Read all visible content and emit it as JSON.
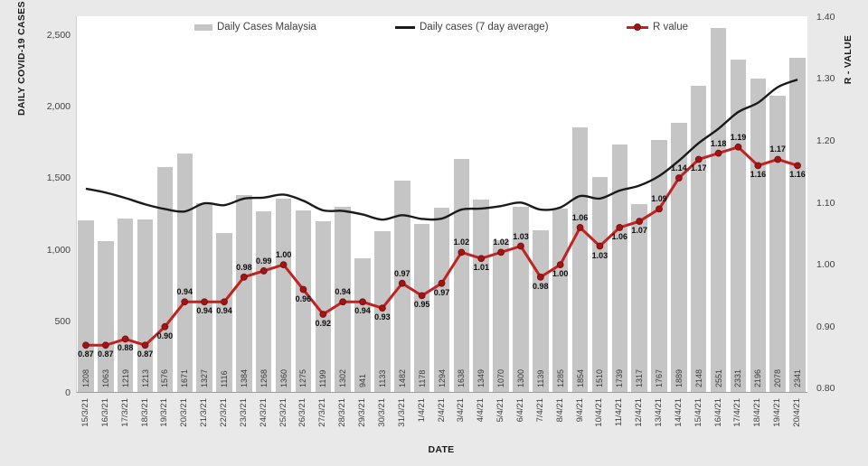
{
  "titles": {
    "y_left": "DAILY COVID-19 CASES",
    "y_right": "R - VALUE",
    "x": "DATE"
  },
  "legend": [
    {
      "label": "Daily Cases Malaysia"
    },
    {
      "label": "Daily cases (7 day average)"
    },
    {
      "label": "R value"
    }
  ],
  "colors": {
    "fig_bg": "#e9e9e9",
    "plot_bg": "#ffffff",
    "bar": "#c5c5c5",
    "avg_line": "#1a1a1a",
    "r_line": "#c32020",
    "r_marker_fill": "#a31515",
    "r_marker_stroke": "#7c0f0f"
  },
  "axes": {
    "left_ticks": [
      {
        "label": "2,500",
        "value": 2500
      },
      {
        "label": "2,000",
        "value": 2000
      },
      {
        "label": "1,500",
        "value": 1500
      },
      {
        "label": "1,000",
        "value": 1000
      },
      {
        "label": "500",
        "value": 500
      },
      {
        "label": "0",
        "value": 0
      }
    ],
    "right_ticks": [
      {
        "label": "1.40",
        "value": 1.4
      },
      {
        "label": "1.30",
        "value": 1.3
      },
      {
        "label": "1.20",
        "value": 1.2
      },
      {
        "label": "1.10",
        "value": 1.1
      },
      {
        "label": "1.00",
        "value": 1.0
      },
      {
        "label": "0.90",
        "value": 0.9
      },
      {
        "label": "0.80",
        "value": 0.8
      }
    ]
  },
  "chart_data": {
    "type": "bar",
    "title": "",
    "xlabel": "DATE",
    "ylabel_left": "DAILY COVID-19 CASES",
    "ylabel_right": "R - VALUE",
    "ylim_left": [
      0,
      2500
    ],
    "ylim_right": [
      0.8,
      1.4
    ],
    "grid": false,
    "legend_position": "top",
    "categories": [
      "15/3/21",
      "16/3/21",
      "17/3/21",
      "18/3/21",
      "19/3/21",
      "20/3/21",
      "21/3/21",
      "22/3/21",
      "23/3/21",
      "24/3/21",
      "25/3/21",
      "26/3/21",
      "27/3/21",
      "28/3/21",
      "29/3/21",
      "30/3/21",
      "31/3/21",
      "1/4/21",
      "2/4/21",
      "3/4/21",
      "4/4/21",
      "5/4/21",
      "6/4/21",
      "7/4/21",
      "8/4/21",
      "9/4/21",
      "10/4/21",
      "11/4/21",
      "12/4/21",
      "13/4/21",
      "14/4/21",
      "15/4/21",
      "16/4/21",
      "17/4/21",
      "18/4/21",
      "19/4/21",
      "20/4/21"
    ],
    "series": [
      {
        "name": "Daily Cases Malaysia",
        "type": "bar",
        "axis": "left",
        "values": [
          1208,
          1063,
          1219,
          1213,
          1576,
          1671,
          1327,
          1116,
          1384,
          1268,
          1360,
          1275,
          1199,
          1302,
          941,
          1133,
          1482,
          1178,
          1294,
          1638,
          1349,
          1070,
          1300,
          1139,
          1285,
          1854,
          1510,
          1739,
          1317,
          1767,
          1889,
          2148,
          2551,
          2331,
          2196,
          2078,
          2341
        ]
      },
      {
        "name": "Daily cases (7 day average)",
        "type": "line",
        "axis": "left",
        "values": [
          1427,
          1400,
          1362,
          1318,
          1285,
          1268,
          1325,
          1312,
          1358,
          1365,
          1386,
          1343,
          1276,
          1272,
          1247,
          1211,
          1242,
          1216,
          1218,
          1281,
          1288,
          1306,
          1330,
          1281,
          1296,
          1376,
          1358,
          1414,
          1449,
          1516,
          1623,
          1746,
          1846,
          1963,
          2028,
          2137,
          2190
        ]
      },
      {
        "name": "R value",
        "type": "line-marker",
        "axis": "right",
        "values": [
          0.87,
          0.87,
          0.88,
          0.87,
          0.9,
          0.94,
          0.94,
          0.94,
          0.98,
          0.99,
          1.0,
          0.96,
          0.92,
          0.94,
          0.94,
          0.93,
          0.97,
          0.95,
          0.97,
          1.02,
          1.01,
          1.02,
          1.03,
          0.98,
          1.0,
          1.06,
          1.03,
          1.06,
          1.07,
          1.09,
          1.14,
          1.17,
          1.18,
          1.19,
          1.16,
          1.17,
          1.16
        ],
        "label_side": [
          "b",
          "b",
          "b",
          "b",
          "b",
          "a",
          "b",
          "b",
          "a",
          "a",
          "a",
          "b",
          "b",
          "a",
          "b",
          "b",
          "a",
          "b",
          "b",
          "a",
          "b",
          "a",
          "a",
          "b",
          "b",
          "a",
          "b",
          "b",
          "b",
          "a",
          "a",
          "b",
          "a",
          "a",
          "b",
          "a",
          "b"
        ]
      }
    ]
  }
}
